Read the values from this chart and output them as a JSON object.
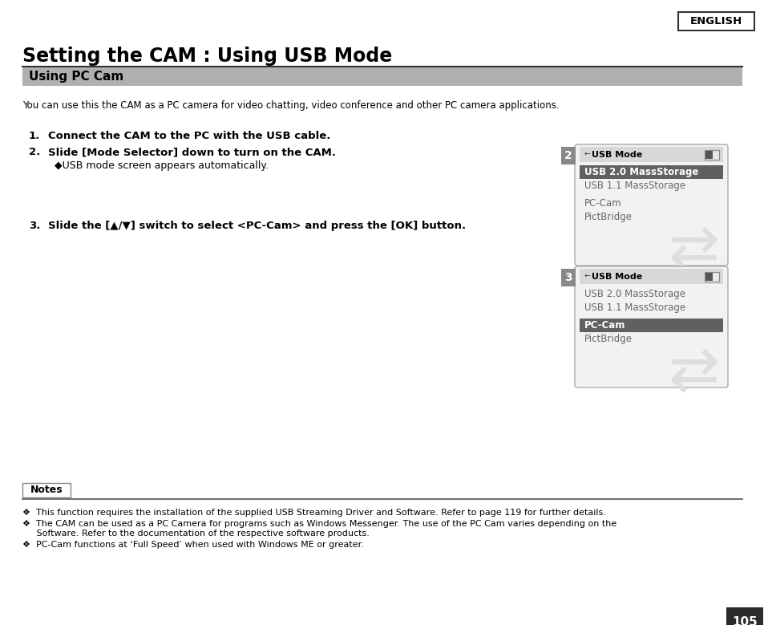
{
  "title": "Setting the CAM : Using USB Mode",
  "section_header": "Using PC Cam",
  "intro_text": "You can use this the CAM as a PC camera for video chatting, video conference and other PC camera applications.",
  "step1": "Connect the CAM to the PC with the USB cable.",
  "step2": "Slide [Mode Selector] down to turn on the CAM.",
  "step2_sub": "◆USB mode screen appears automatically.",
  "step3": "Slide the [▲/▼] switch to select <PC-Cam> and press the [OK] button.",
  "screen_title": "USB Mode",
  "screen_items": [
    "USB 2.0 MassStorage",
    "USB 1.1 MassStorage",
    "PC-Cam",
    "PictBridge"
  ],
  "screen2_highlighted": "USB 2.0 MassStorage",
  "screen3_highlighted": "PC-Cam",
  "notes_header": "Notes",
  "note1": "❖  This function requires the installation of the supplied USB Streaming Driver and Software. Refer to page 119 for further details.",
  "note2a": "❖  The CAM can be used as a PC Camera for programs such as Windows Messenger. The use of the PC Cam varies depending on the",
  "note2b": "     Software. Refer to the documentation of the respective software products.",
  "note3": "❖  PC-Cam functions at ‘Full Speed’ when used with Windows ME or greater.",
  "page_num": "105",
  "english_label": "ENGLISH"
}
